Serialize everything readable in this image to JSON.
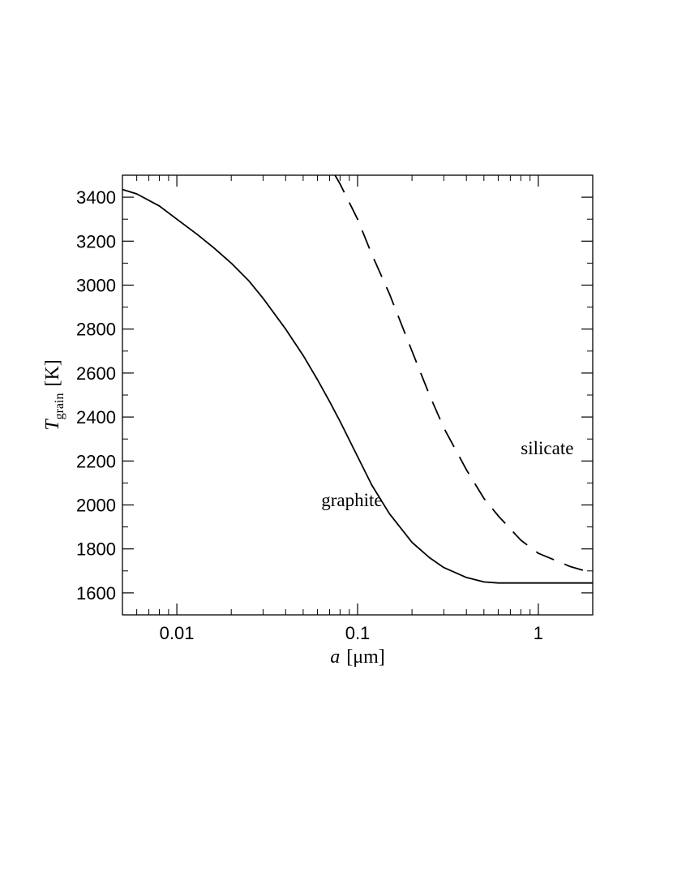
{
  "chart_data": {
    "type": "line",
    "xlabel": {
      "var": "a",
      "unit": "[μm]"
    },
    "ylabel": {
      "var": "T",
      "sub": "grain",
      "unit": "[K]"
    },
    "x_scale": "log",
    "xlim": [
      0.005,
      2.0
    ],
    "ylim": [
      1500,
      3500
    ],
    "x_ticks": [
      0.01,
      0.1,
      1
    ],
    "x_tick_labels": [
      "0.01",
      "0.1",
      "1"
    ],
    "y_ticks": [
      1600,
      1800,
      2000,
      2200,
      2400,
      2600,
      2800,
      3000,
      3200,
      3400
    ],
    "y_tick_labels": [
      "1600",
      "1800",
      "2000",
      "2200",
      "2400",
      "2600",
      "2800",
      "3000",
      "3200",
      "3400"
    ],
    "grid": false,
    "series": [
      {
        "label": "graphite",
        "style": "solid",
        "x": [
          0.005,
          0.006,
          0.008,
          0.01,
          0.013,
          0.016,
          0.02,
          0.025,
          0.03,
          0.04,
          0.05,
          0.06,
          0.07,
          0.08,
          0.1,
          0.12,
          0.15,
          0.2,
          0.25,
          0.3,
          0.4,
          0.5,
          0.6,
          0.8,
          1.0,
          1.5,
          2.0
        ],
        "y": [
          3435,
          3415,
          3360,
          3300,
          3230,
          3170,
          3100,
          3020,
          2940,
          2800,
          2680,
          2570,
          2470,
          2380,
          2220,
          2090,
          1960,
          1830,
          1760,
          1715,
          1670,
          1650,
          1645,
          1645,
          1645,
          1645,
          1645
        ]
      },
      {
        "label": "silicate",
        "style": "dashed",
        "x": [
          0.075,
          0.08,
          0.1,
          0.12,
          0.15,
          0.2,
          0.25,
          0.3,
          0.4,
          0.5,
          0.6,
          0.8,
          1.0,
          1.5,
          2.0
        ],
        "y": [
          3500,
          3460,
          3300,
          3140,
          2960,
          2700,
          2500,
          2350,
          2160,
          2030,
          1950,
          1840,
          1780,
          1720,
          1690
        ]
      }
    ],
    "annotations": [
      {
        "text": "silicate",
        "x": 0.8,
        "y": 2230
      },
      {
        "text": "graphite",
        "x": 0.063,
        "y": 1995
      }
    ]
  }
}
